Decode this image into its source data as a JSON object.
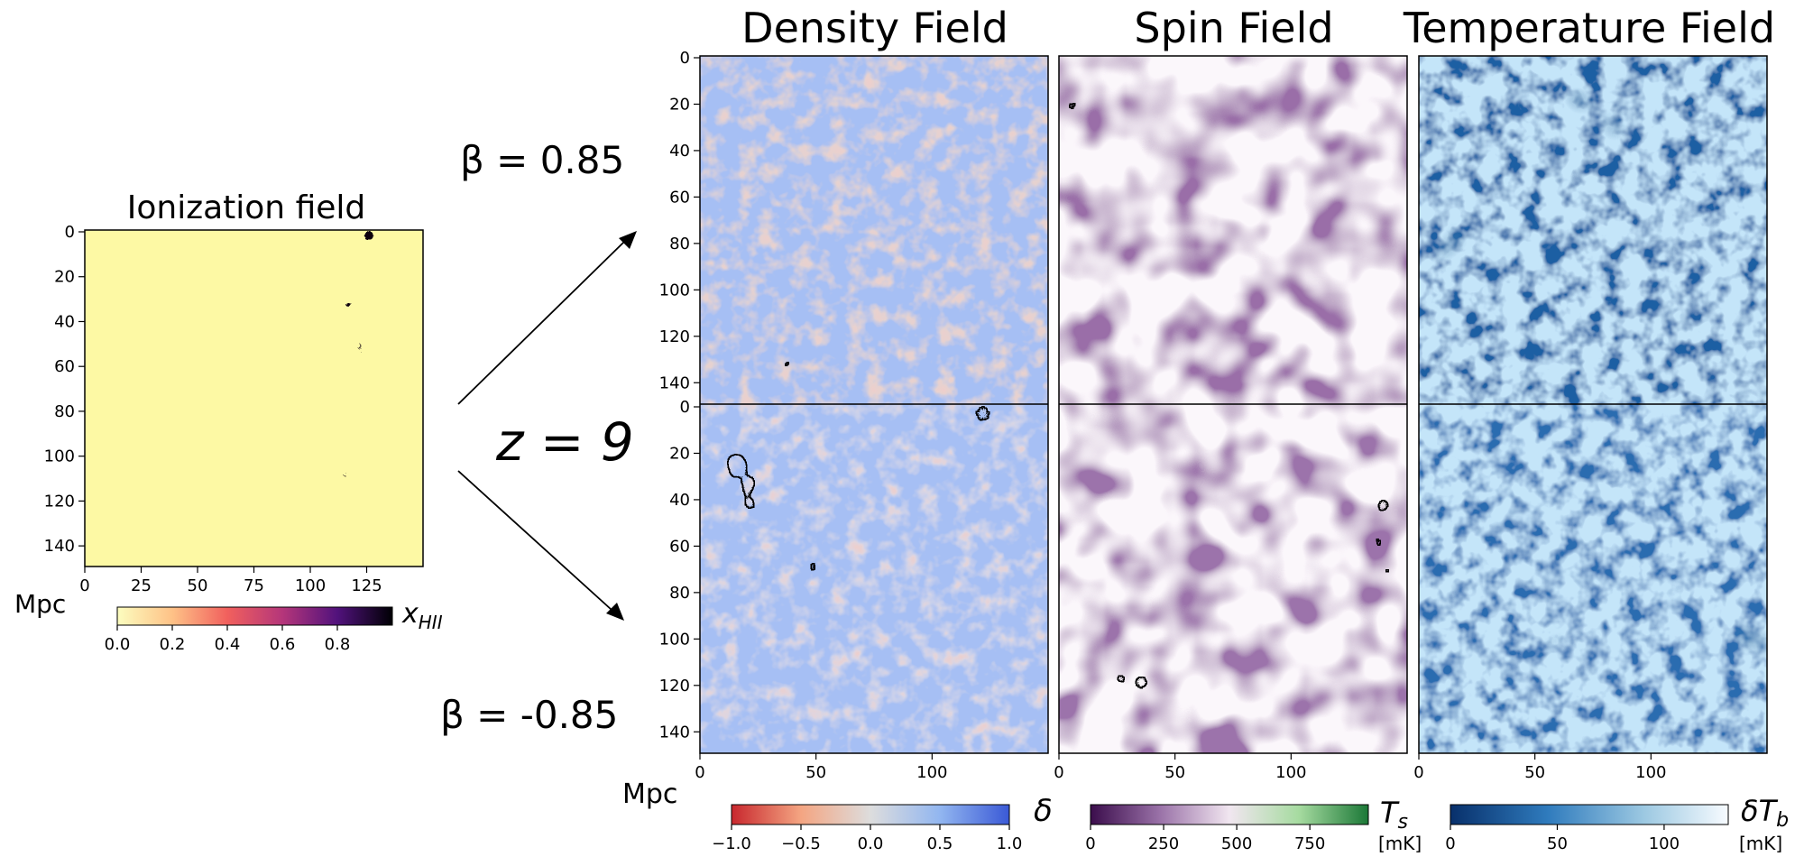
{
  "ionization": {
    "title": "Ionization field",
    "xticks": [
      "0",
      "25",
      "50",
      "75",
      "100",
      "125"
    ],
    "yticks": [
      "0",
      "20",
      "40",
      "60",
      "80",
      "100",
      "120",
      "140"
    ],
    "unit": "Mpc",
    "colorbar": {
      "label": "x_HII",
      "ticks": [
        "0.0",
        "0.2",
        "0.4",
        "0.6",
        "0.8"
      ],
      "colormap": "magma_r"
    }
  },
  "annotations": {
    "beta_top": "β = 0.85",
    "redshift": "z = 9",
    "beta_bottom": "β = -0.85"
  },
  "panels": {
    "density": {
      "title": "Density Field"
    },
    "spin": {
      "title": "Spin Field"
    },
    "temperature": {
      "title": "Temperature Field"
    }
  },
  "grid": {
    "yticks": [
      "0",
      "20",
      "40",
      "60",
      "80",
      "100",
      "120",
      "140"
    ],
    "xticks": [
      "0",
      "50",
      "100"
    ],
    "unit": "Mpc"
  },
  "colorbars": {
    "density": {
      "label": "δ",
      "ticks": [
        "−1.0",
        "−0.5",
        "0.0",
        "0.5",
        "1.0"
      ],
      "colors": [
        "#c8272d",
        "#f4a582",
        "#dddddd",
        "#92b6f0",
        "#3a59d6"
      ]
    },
    "spin": {
      "label": "T_s",
      "unit": "[mK]",
      "ticks": [
        "0",
        "250",
        "500",
        "750"
      ],
      "colors": [
        "#3b0d4c",
        "#9a72a8",
        "#f1e6f0",
        "#a6dba0",
        "#1b7837"
      ]
    },
    "temperature": {
      "label": "δT_b",
      "unit": "[mK]",
      "ticks": [
        "0",
        "50",
        "100"
      ],
      "colors": [
        "#08306b",
        "#2f7bbd",
        "#9dc9e2",
        "#f7fbff"
      ]
    }
  },
  "chart_data": [
    {
      "type": "heatmap",
      "title": "Ionization field",
      "xlim": [
        0,
        150
      ],
      "ylim": [
        150,
        0
      ],
      "xlabel": "Mpc",
      "colorbar_range": [
        0,
        1
      ]
    },
    {
      "type": "heatmap",
      "title": "Density Field",
      "rows": [
        "β = 0.85",
        "β = -0.85"
      ],
      "xlim": [
        0,
        150
      ],
      "ylim": [
        150,
        0
      ],
      "xlabel": "Mpc",
      "colorbar_range": [
        -1.0,
        1.0
      ]
    },
    {
      "type": "heatmap",
      "title": "Spin Field",
      "rows": [
        "β = 0.85",
        "β = -0.85"
      ],
      "xlim": [
        0,
        150
      ],
      "ylim": [
        150,
        0
      ],
      "colorbar_range": [
        0,
        950
      ]
    },
    {
      "type": "heatmap",
      "title": "Temperature Field",
      "rows": [
        "β = 0.85",
        "β = -0.85"
      ],
      "xlim": [
        0,
        150
      ],
      "ylim": [
        150,
        0
      ],
      "colorbar_range": [
        0,
        130
      ]
    }
  ]
}
